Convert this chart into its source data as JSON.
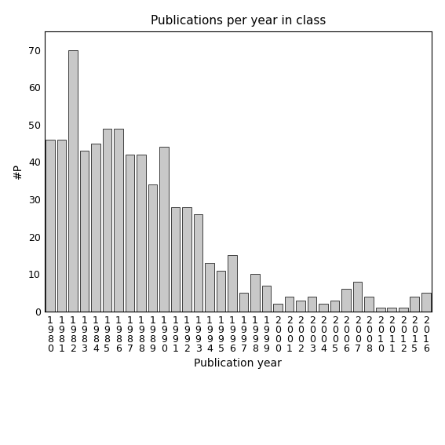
{
  "title": "Publications per year in class",
  "xlabel": "Publication year",
  "ylabel": "#P",
  "bar_color": "#c8c8c8",
  "bar_edgecolor": "#000000",
  "categories": [
    "1980",
    "1981",
    "1982",
    "1983",
    "1984",
    "1985",
    "1986",
    "1987",
    "1988",
    "1989",
    "1990",
    "1991",
    "1992",
    "1993",
    "1994",
    "1995",
    "1996",
    "1997",
    "1998",
    "1999",
    "2000",
    "2001",
    "2002",
    "2003",
    "2004",
    "2005",
    "2006",
    "2007",
    "2008",
    "2010",
    "2011",
    "2012",
    "2015",
    "2016"
  ],
  "values": [
    46,
    46,
    70,
    43,
    45,
    49,
    49,
    42,
    42,
    34,
    44,
    28,
    28,
    26,
    13,
    11,
    15,
    5,
    10,
    7,
    2,
    4,
    3,
    4,
    2,
    3,
    6,
    8,
    4,
    1,
    1,
    1,
    4,
    5
  ],
  "ylim": [
    0,
    75
  ],
  "yticks": [
    0,
    10,
    20,
    30,
    40,
    50,
    60,
    70
  ],
  "title_fontsize": 11,
  "label_fontsize": 10,
  "tick_fontsize": 9
}
